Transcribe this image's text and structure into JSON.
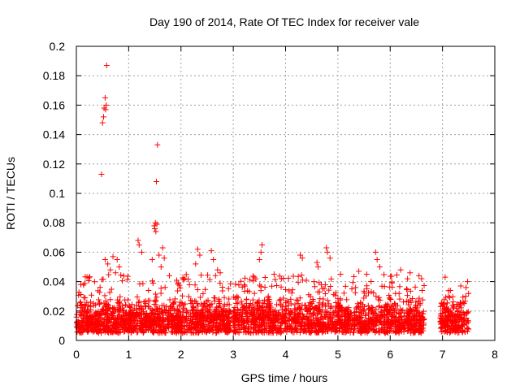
{
  "colors": {
    "series": "#ff0000",
    "background": "#ffffff"
  },
  "chart_data": {
    "type": "scatter",
    "title": "Day 190 of 2014, Rate Of TEC Index for receiver vale",
    "xlabel": "GPS time / hours",
    "ylabel": "ROTI / TECUs",
    "xlim": [
      0,
      8
    ],
    "ylim": [
      0,
      0.2
    ],
    "xticks": [
      0,
      1,
      2,
      3,
      4,
      5,
      6,
      7,
      8
    ],
    "yticks": [
      0,
      0.02,
      0.04,
      0.06,
      0.08,
      0.1,
      0.12,
      0.14,
      0.16,
      0.18,
      0.2
    ],
    "xtick_labels": [
      "0",
      "1",
      "2",
      "3",
      "4",
      "5",
      "6",
      "7",
      "8"
    ],
    "ytick_labels": [
      "0",
      "0.02",
      "0.04",
      "0.06",
      "0.08",
      "0.1",
      "0.12",
      "0.14",
      "0.16",
      "0.18",
      "0.2"
    ],
    "grid": true,
    "marker": "plus",
    "series": [
      {
        "name": "ROTI",
        "dense_segments": [
          {
            "x_start": 0.0,
            "x_end": 2.95,
            "base_min": 0.005,
            "base_max": 0.03,
            "spike_max": 0.045,
            "count": 1300
          },
          {
            "x_start": 3.0,
            "x_end": 6.65,
            "base_min": 0.005,
            "base_max": 0.03,
            "spike_max": 0.045,
            "count": 1500
          },
          {
            "x_start": 6.95,
            "x_end": 7.5,
            "base_min": 0.005,
            "base_max": 0.03,
            "spike_max": 0.035,
            "count": 220
          }
        ],
        "points": [
          [
            0.58,
            0.187
          ],
          [
            0.55,
            0.165
          ],
          [
            0.57,
            0.16
          ],
          [
            0.53,
            0.158
          ],
          [
            0.56,
            0.157
          ],
          [
            0.52,
            0.152
          ],
          [
            0.5,
            0.148
          ],
          [
            0.48,
            0.113
          ],
          [
            1.55,
            0.133
          ],
          [
            1.53,
            0.108
          ],
          [
            1.51,
            0.08
          ],
          [
            1.49,
            0.078
          ],
          [
            1.5,
            0.076
          ],
          [
            1.52,
            0.074
          ],
          [
            1.54,
            0.079
          ],
          [
            0.55,
            0.055
          ],
          [
            0.6,
            0.052
          ],
          [
            0.7,
            0.057
          ],
          [
            0.78,
            0.055
          ],
          [
            0.82,
            0.05
          ],
          [
            0.65,
            0.048
          ],
          [
            0.75,
            0.046
          ],
          [
            1.18,
            0.068
          ],
          [
            1.2,
            0.065
          ],
          [
            1.25,
            0.06
          ],
          [
            1.45,
            0.055
          ],
          [
            1.58,
            0.058
          ],
          [
            1.65,
            0.063
          ],
          [
            1.68,
            0.056
          ],
          [
            1.62,
            0.05
          ],
          [
            2.32,
            0.062
          ],
          [
            2.36,
            0.058
          ],
          [
            2.28,
            0.052
          ],
          [
            2.58,
            0.061
          ],
          [
            2.62,
            0.055
          ],
          [
            2.7,
            0.048
          ],
          [
            2.75,
            0.046
          ],
          [
            3.55,
            0.065
          ],
          [
            3.53,
            0.06
          ],
          [
            3.5,
            0.055
          ],
          [
            3.4,
            0.043
          ],
          [
            3.78,
            0.045
          ],
          [
            3.92,
            0.042
          ],
          [
            4.28,
            0.058
          ],
          [
            4.32,
            0.056
          ],
          [
            4.6,
            0.053
          ],
          [
            4.62,
            0.05
          ],
          [
            4.78,
            0.063
          ],
          [
            4.8,
            0.06
          ],
          [
            4.85,
            0.056
          ],
          [
            5.05,
            0.045
          ],
          [
            5.4,
            0.047
          ],
          [
            5.55,
            0.045
          ],
          [
            5.72,
            0.06
          ],
          [
            5.75,
            0.055
          ],
          [
            5.8,
            0.05
          ],
          [
            6.2,
            0.048
          ],
          [
            6.38,
            0.046
          ],
          [
            6.55,
            0.044
          ],
          [
            6.6,
            0.042
          ],
          [
            7.05,
            0.043
          ],
          [
            7.15,
            0.034
          ],
          [
            7.35,
            0.037
          ],
          [
            7.48,
            0.04
          ],
          [
            7.45,
            0.036
          ]
        ]
      }
    ]
  }
}
